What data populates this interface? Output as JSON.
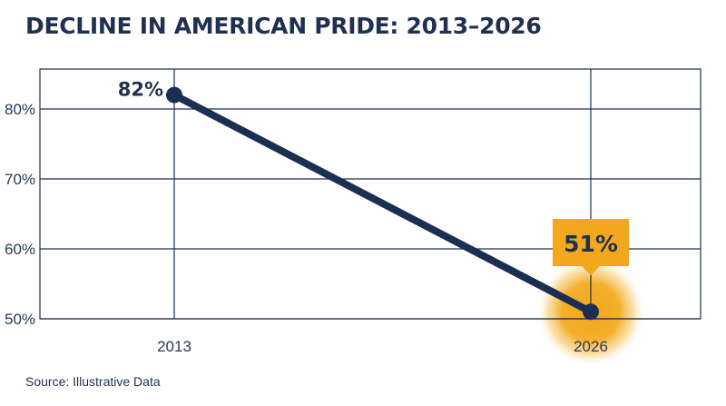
{
  "title": "DECLINE IN AMERICAN PRIDE: 2013–2026",
  "source": "Source: Illustrative Data",
  "colors": {
    "line": "#1b2f52",
    "grid": "#1f3050",
    "highlight": "#f2a71c",
    "text": "#1f3050"
  },
  "chart_data": {
    "type": "line",
    "title": "DECLINE IN AMERICAN PRIDE: 2013–2026",
    "xlabel": "",
    "ylabel": "",
    "categories": [
      "2013",
      "2026"
    ],
    "x": [
      2013,
      2026
    ],
    "series": [
      {
        "values": [
          82,
          51
        ],
        "data_labels": [
          "82%",
          "51%"
        ]
      }
    ],
    "ylim": [
      50,
      80
    ],
    "yticks": [
      {
        "value": 50,
        "label": "50%"
      },
      {
        "value": 60,
        "label": "60%"
      },
      {
        "value": 70,
        "label": "70%"
      },
      {
        "value": 80,
        "label": "80%"
      }
    ],
    "highlight": {
      "category": "2026",
      "label": "51%"
    },
    "grid": true,
    "legend": "none"
  }
}
